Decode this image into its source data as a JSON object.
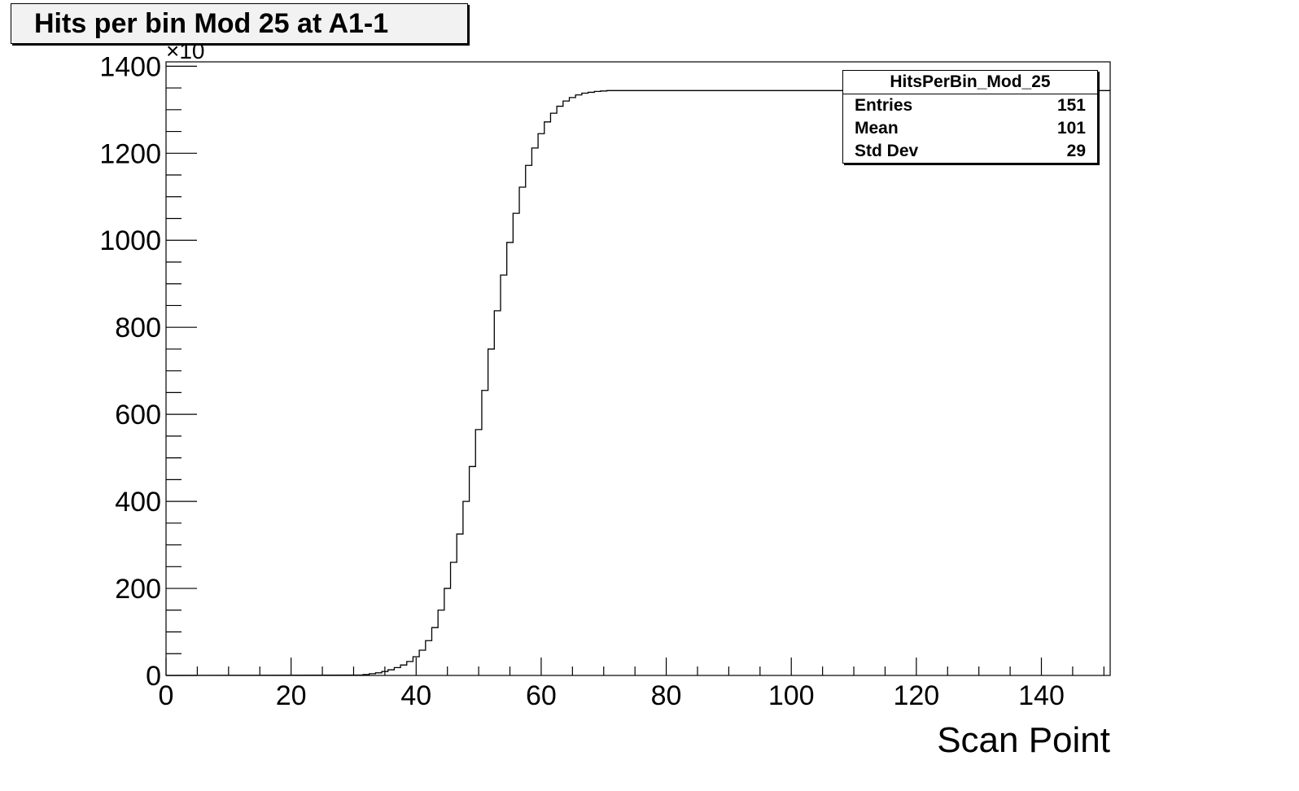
{
  "chart_data": {
    "type": "bar",
    "title": "Hits per bin Mod 25 at A1-1",
    "xlabel": "Scan Point",
    "ylabel": "",
    "y_multiplier": "×10",
    "xlim": [
      0,
      151
    ],
    "ylim": [
      0,
      1410
    ],
    "x_ticks": [
      0,
      20,
      40,
      60,
      80,
      100,
      120,
      140
    ],
    "y_ticks": [
      0,
      200,
      400,
      600,
      800,
      1000,
      1200,
      1400
    ],
    "grid": false,
    "legend": "none",
    "bin_width": 1,
    "x": [
      31,
      32,
      33,
      34,
      35,
      36,
      37,
      38,
      39,
      40,
      41,
      42,
      43,
      44,
      45,
      46,
      47,
      48,
      49,
      50,
      51,
      52,
      53,
      54,
      55,
      56,
      57,
      58,
      59,
      60,
      61,
      62,
      63,
      64,
      65,
      66,
      67,
      68,
      69,
      70,
      71
    ],
    "values": [
      1,
      2,
      4,
      6,
      9,
      13,
      18,
      24,
      32,
      43,
      58,
      80,
      110,
      150,
      200,
      260,
      325,
      400,
      480,
      565,
      655,
      750,
      838,
      920,
      995,
      1062,
      1122,
      1172,
      1212,
      1245,
      1272,
      1292,
      1308,
      1320,
      1328,
      1334,
      1338,
      1340,
      1342,
      1343,
      1344
    ],
    "plateau_value": 1344,
    "plateau_range": [
      71,
      151
    ],
    "stats": {
      "name": "HitsPerBin_Mod_25",
      "rows": [
        {
          "label": "Entries",
          "value": "151"
        },
        {
          "label": "Mean",
          "value": "101"
        },
        {
          "label": "Std Dev",
          "value": "29"
        }
      ]
    }
  }
}
